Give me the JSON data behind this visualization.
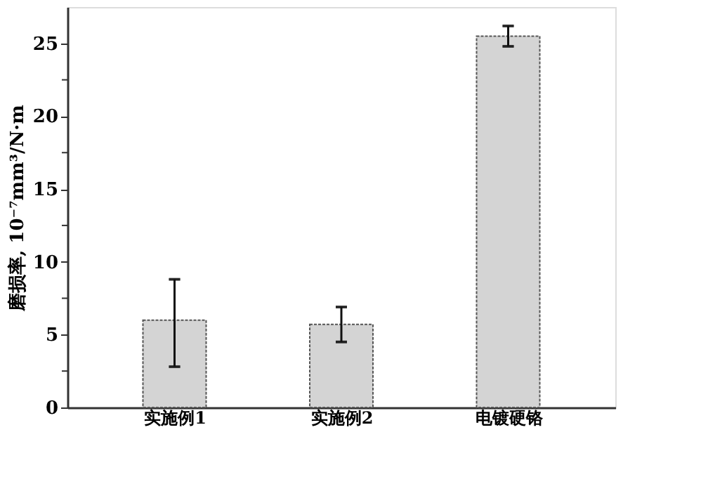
{
  "chart_data": {
    "type": "bar",
    "ylabel": "磨损率, 10⁻⁷mm³/N·m",
    "categories": [
      "实施例1",
      "实施例2",
      "电镀硬铬"
    ],
    "values": [
      6.0,
      5.7,
      25.5
    ],
    "errors": [
      [
        2.8,
        8.8
      ],
      [
        4.5,
        6.9
      ],
      [
        24.8,
        26.2
      ]
    ],
    "color": "#d4d4d4",
    "ylim": [
      0,
      27.5
    ],
    "yticks": [
      0,
      {
        "value": 2.5,
        "label": null
      },
      5,
      {
        "value": 7.5,
        "label": null
      },
      10,
      {
        "value": 12.5,
        "label": null
      },
      15,
      {
        "value": 17.5,
        "label": null
      },
      20,
      {
        "value": 22.5,
        "label": null
      },
      25
    ],
    "grid": false
  }
}
